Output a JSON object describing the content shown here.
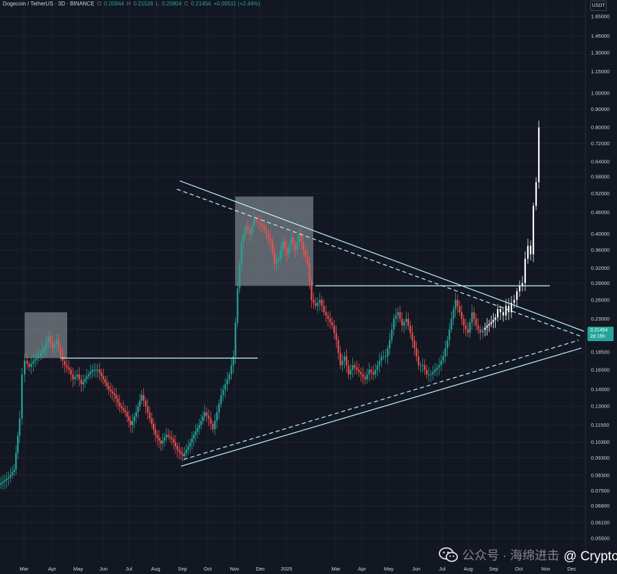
{
  "header": {
    "title": "Dogecoin / TetherUS · 3D · BINANCE",
    "open_label": "O",
    "open": "0.20944",
    "high_label": "H",
    "high": "0.21526",
    "low_label": "L",
    "low": "0.20804",
    "close_label": "C",
    "close": "0.21454",
    "change": "+0.00511 (+2.44%)"
  },
  "price_axis": {
    "unit": "USDT",
    "current_price": "0.21454",
    "countdown": "2d 15h"
  },
  "watermark": {
    "left_text": "公众号 · 海绵进击",
    "right_text": "@ Crypto海绵"
  },
  "colors": {
    "background": "#131722",
    "up": "#26a69a",
    "down": "#ef5350",
    "grid": "#1e222d",
    "trendline": "#b2ebf2",
    "zone": "#9aa4a8",
    "projection": "#ffffff"
  },
  "chart_data": {
    "type": "candlestick",
    "symbol": "Dogecoin / TetherUS",
    "interval": "3D",
    "exchange": "BINANCE",
    "scale": "log",
    "y_ticks": [
      "1.65000",
      "1.45000",
      "1.30000",
      "1.15000",
      "1.00000",
      "0.90000",
      "0.80000",
      "0.72000",
      "0.64000",
      "0.58000",
      "0.52000",
      "0.46000",
      "0.40000",
      "0.36000",
      "0.32000",
      "0.29000",
      "0.26000",
      "0.23000",
      "0.18500",
      "0.16500",
      "0.14500",
      "0.13000",
      "0.11500",
      "0.10300",
      "0.09300",
      "0.08300",
      "0.07500",
      "0.06800",
      "0.06100",
      "0.05500"
    ],
    "x_ticks": [
      "Mar",
      "Apr",
      "May",
      "Jun",
      "Jul",
      "Aug",
      "Sep",
      "Oct",
      "Nov",
      "Dec",
      "2025",
      "Mar",
      "Apr",
      "May",
      "Jun",
      "Jul",
      "Aug",
      "Sep",
      "Oct",
      "Nov",
      "Dec"
    ],
    "price_path": [
      [
        0,
        0.078
      ],
      [
        14,
        0.082
      ],
      [
        22,
        0.086
      ],
      [
        30,
        0.12
      ],
      [
        34,
        0.16
      ],
      [
        38,
        0.175
      ],
      [
        44,
        0.168
      ],
      [
        50,
        0.175
      ],
      [
        58,
        0.18
      ],
      [
        66,
        0.19
      ],
      [
        72,
        0.205
      ],
      [
        78,
        0.19
      ],
      [
        84,
        0.2
      ],
      [
        90,
        0.18
      ],
      [
        96,
        0.17
      ],
      [
        102,
        0.165
      ],
      [
        108,
        0.155
      ],
      [
        114,
        0.16
      ],
      [
        120,
        0.15
      ],
      [
        128,
        0.158
      ],
      [
        136,
        0.165
      ],
      [
        144,
        0.165
      ],
      [
        152,
        0.155
      ],
      [
        160,
        0.145
      ],
      [
        168,
        0.14
      ],
      [
        176,
        0.13
      ],
      [
        184,
        0.125
      ],
      [
        192,
        0.115
      ],
      [
        200,
        0.125
      ],
      [
        208,
        0.14
      ],
      [
        214,
        0.13
      ],
      [
        220,
        0.12
      ],
      [
        228,
        0.108
      ],
      [
        236,
        0.102
      ],
      [
        244,
        0.108
      ],
      [
        252,
        0.105
      ],
      [
        260,
        0.098
      ],
      [
        268,
        0.094
      ],
      [
        276,
        0.1
      ],
      [
        284,
        0.108
      ],
      [
        292,
        0.115
      ],
      [
        300,
        0.125
      ],
      [
        306,
        0.12
      ],
      [
        312,
        0.112
      ],
      [
        318,
        0.125
      ],
      [
        324,
        0.14
      ],
      [
        330,
        0.15
      ],
      [
        336,
        0.16
      ],
      [
        342,
        0.18
      ],
      [
        348,
        0.28
      ],
      [
        354,
        0.38
      ],
      [
        360,
        0.42
      ],
      [
        366,
        0.4
      ],
      [
        372,
        0.44
      ],
      [
        378,
        0.43
      ],
      [
        384,
        0.42
      ],
      [
        390,
        0.4
      ],
      [
        396,
        0.38
      ],
      [
        402,
        0.33
      ],
      [
        408,
        0.34
      ],
      [
        414,
        0.38
      ],
      [
        420,
        0.35
      ],
      [
        426,
        0.39
      ],
      [
        432,
        0.36
      ],
      [
        438,
        0.4
      ],
      [
        444,
        0.36
      ],
      [
        450,
        0.33
      ],
      [
        456,
        0.26
      ],
      [
        462,
        0.25
      ],
      [
        468,
        0.26
      ],
      [
        474,
        0.24
      ],
      [
        480,
        0.23
      ],
      [
        486,
        0.22
      ],
      [
        492,
        0.2
      ],
      [
        498,
        0.17
      ],
      [
        504,
        0.18
      ],
      [
        510,
        0.16
      ],
      [
        516,
        0.17
      ],
      [
        522,
        0.165
      ],
      [
        528,
        0.16
      ],
      [
        534,
        0.155
      ],
      [
        540,
        0.165
      ],
      [
        546,
        0.16
      ],
      [
        552,
        0.17
      ],
      [
        558,
        0.18
      ],
      [
        564,
        0.18
      ],
      [
        570,
        0.2
      ],
      [
        576,
        0.23
      ],
      [
        582,
        0.24
      ],
      [
        588,
        0.22
      ],
      [
        594,
        0.23
      ],
      [
        600,
        0.21
      ],
      [
        606,
        0.19
      ],
      [
        612,
        0.17
      ],
      [
        618,
        0.17
      ],
      [
        624,
        0.16
      ],
      [
        630,
        0.16
      ],
      [
        636,
        0.165
      ],
      [
        642,
        0.17
      ],
      [
        648,
        0.18
      ],
      [
        654,
        0.2
      ],
      [
        660,
        0.23
      ],
      [
        666,
        0.26
      ],
      [
        672,
        0.24
      ],
      [
        678,
        0.22
      ],
      [
        684,
        0.21
      ],
      [
        690,
        0.24
      ],
      [
        696,
        0.22
      ],
      [
        702,
        0.21
      ],
      [
        706,
        0.214
      ]
    ],
    "projection_path": [
      [
        706,
        0.214
      ],
      [
        712,
        0.22
      ],
      [
        718,
        0.225
      ],
      [
        724,
        0.232
      ],
      [
        728,
        0.245
      ],
      [
        732,
        0.24
      ],
      [
        736,
        0.235
      ],
      [
        740,
        0.25
      ],
      [
        744,
        0.24
      ],
      [
        748,
        0.255
      ],
      [
        752,
        0.26
      ],
      [
        756,
        0.275
      ],
      [
        760,
        0.285
      ],
      [
        764,
        0.29
      ],
      [
        768,
        0.34
      ],
      [
        772,
        0.37
      ],
      [
        776,
        0.35
      ],
      [
        780,
        0.48
      ],
      [
        784,
        0.56
      ],
      [
        788,
        0.8
      ]
    ],
    "zones": [
      {
        "x": [
          36,
          98
        ],
        "y": [
          0.178,
          0.24
        ]
      },
      {
        "x": [
          343,
          457
        ],
        "y": [
          0.285,
          0.51
        ]
      }
    ],
    "horizontal_levels": [
      {
        "x": [
          88,
          376
        ],
        "y": 0.178,
        "label": ""
      },
      {
        "x": [
          460,
          802
        ],
        "y": 0.285,
        "label": ""
      }
    ],
    "trendlines": [
      {
        "from": [
          262,
          0.565
        ],
        "to": [
          852,
          0.212
        ],
        "style": "solid"
      },
      {
        "from": [
          258,
          0.535
        ],
        "to": [
          848,
          0.205
        ],
        "style": "dashed"
      },
      {
        "from": [
          264,
          0.088
        ],
        "to": [
          848,
          0.19
        ],
        "style": "solid"
      },
      {
        "from": [
          268,
          0.092
        ],
        "to": [
          844,
          0.2
        ],
        "style": "dashed"
      }
    ],
    "x_tick_positions": [
      35,
      76,
      114,
      151,
      188,
      227,
      266,
      303,
      342,
      380,
      418,
      490,
      528,
      567,
      607,
      645,
      683,
      720,
      757,
      796,
      834
    ]
  }
}
